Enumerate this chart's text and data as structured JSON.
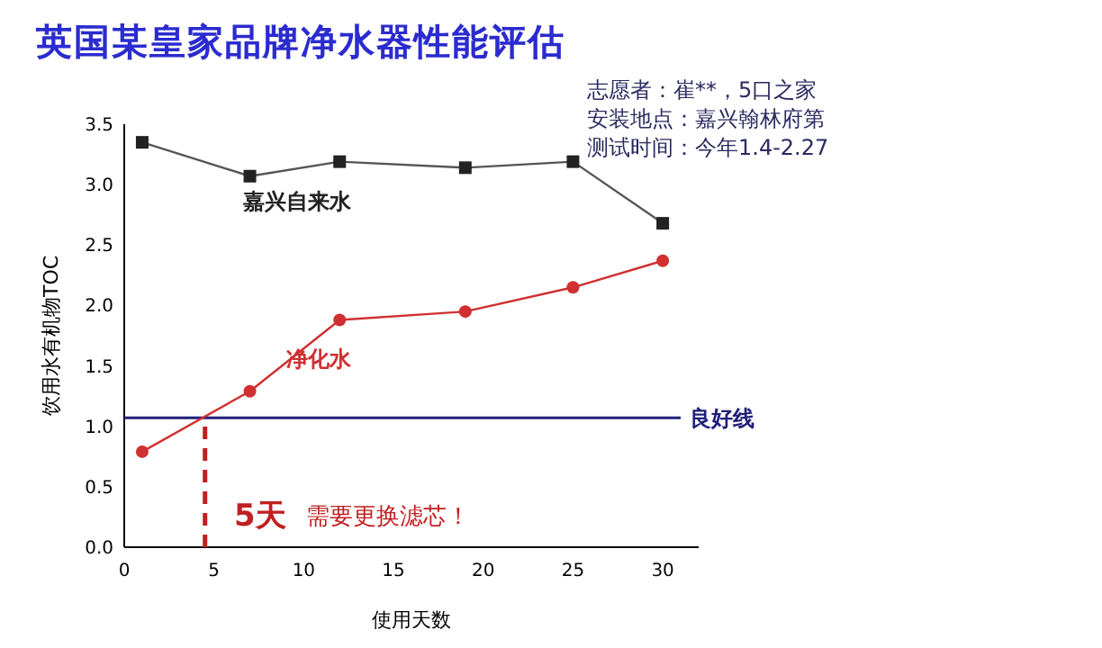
{
  "chart_data": {
    "type": "line",
    "title": "英国某皇家品牌净水器性能评估",
    "xlabel": "使用天数",
    "ylabel": "饮用水有机物TOC",
    "x": [
      1,
      7,
      12,
      19,
      25,
      30
    ],
    "series": [
      {
        "name": "嘉兴自来水",
        "color": "#222222",
        "values": [
          3.35,
          3.07,
          3.19,
          3.14,
          3.19,
          2.68
        ],
        "marker": "square"
      },
      {
        "name": "净化水",
        "color": "#d03030",
        "values": [
          0.79,
          1.29,
          1.88,
          1.95,
          2.15,
          2.37
        ],
        "marker": "circle"
      }
    ],
    "xlim": [
      0,
      32
    ],
    "xticks": [
      0,
      5,
      10,
      15,
      20,
      25,
      30
    ],
    "ylim": [
      0,
      3.5
    ],
    "yticks": [
      {
        "value": 0,
        "label": "0.0"
      },
      {
        "value": 0.5,
        "label": "0.5"
      },
      {
        "value": 1,
        "label": "1.0"
      },
      {
        "value": 1.5,
        "label": "1.5"
      },
      {
        "value": 2,
        "label": "2.0"
      },
      {
        "value": 2.5,
        "label": "2.5"
      },
      {
        "value": 3,
        "label": "3.0"
      },
      {
        "value": 3.5,
        "label": "3.5"
      }
    ],
    "ref_lines": [
      {
        "axis": "y",
        "value": 1.07,
        "label": "良好线",
        "color": "#1f1f7a",
        "line_style": "solid"
      },
      {
        "axis": "x",
        "value": 4.5,
        "color": "#c02020",
        "line_style": "dashed"
      }
    ],
    "annotations": [
      "志愿者：崔**，5口之家",
      "安装地点：嘉兴翰林府第",
      "测试时间：今年1.4-2.27",
      "5天",
      "需要更换滤芯！"
    ],
    "grid": false
  }
}
